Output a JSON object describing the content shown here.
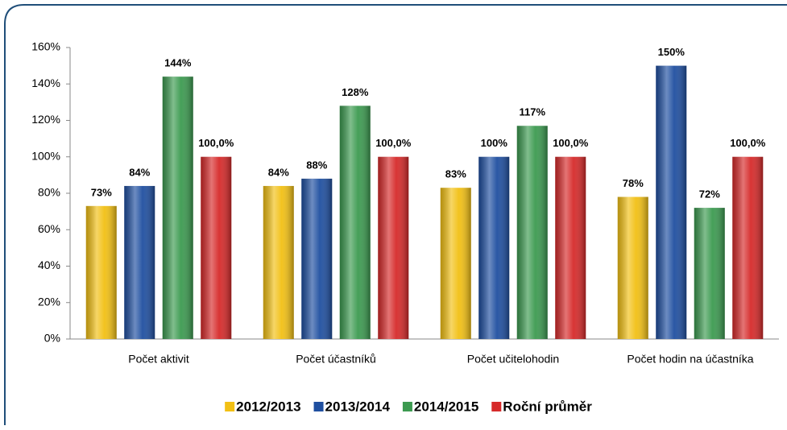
{
  "chart_data": {
    "type": "bar",
    "categories": [
      "Počet aktivit",
      "Počet účastníků",
      "Počet učitelohodin",
      "Počet hodin na účastníka"
    ],
    "series": [
      {
        "name": "2012/2013",
        "color": "#f2c014",
        "values": [
          73,
          84,
          83,
          78
        ],
        "value_labels": [
          "73%",
          "84%",
          "83%",
          "78%"
        ]
      },
      {
        "name": "2013/2014",
        "color": "#1f4fa0",
        "values": [
          84,
          88,
          100,
          150
        ],
        "value_labels": [
          "84%",
          "88%",
          "100%",
          "150%"
        ]
      },
      {
        "name": "2014/2015",
        "color": "#3c9a50",
        "values": [
          144,
          128,
          117,
          72
        ],
        "value_labels": [
          "144%",
          "128%",
          "117%",
          "72%"
        ]
      },
      {
        "name": "Roční průměr",
        "color": "#d62a2a",
        "values": [
          100,
          100,
          100,
          100
        ],
        "value_labels": [
          "100,0%",
          "100,0%",
          "100,0%",
          "100,0%"
        ]
      }
    ],
    "ylim": [
      0,
      160
    ],
    "yticks": [
      {
        "value": 0,
        "label": "0%"
      },
      {
        "value": 20,
        "label": "20%"
      },
      {
        "value": 40,
        "label": "40%"
      },
      {
        "value": 60,
        "label": "60%"
      },
      {
        "value": 80,
        "label": "80%"
      },
      {
        "value": 100,
        "label": "100%"
      },
      {
        "value": 120,
        "label": "120%"
      },
      {
        "value": 140,
        "label": "140%"
      },
      {
        "value": 160,
        "label": "160%"
      }
    ],
    "grid": false,
    "legend": "bottom"
  }
}
